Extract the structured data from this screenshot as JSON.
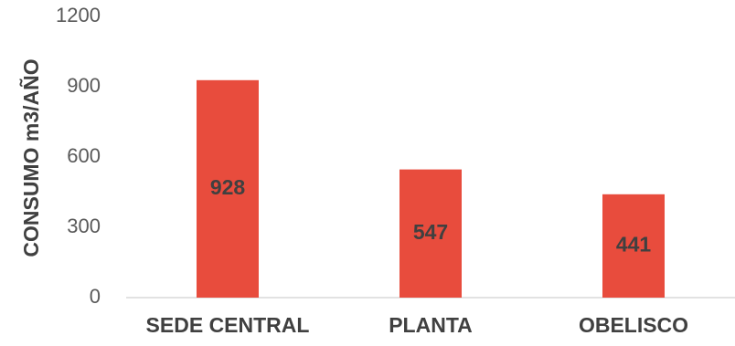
{
  "chart_data": {
    "type": "bar",
    "title": "",
    "xlabel": "",
    "ylabel": "CONSUMO m3/AÑO",
    "categories": [
      "SEDE CENTRAL",
      "PLANTA",
      "OBELISCO"
    ],
    "values": [
      928,
      547,
      441
    ],
    "data_labels": [
      "928",
      "547",
      "441"
    ],
    "ylim": [
      0,
      1200
    ],
    "yticks": [
      "0",
      "300",
      "600",
      "900",
      "1200"
    ],
    "grid": false,
    "legend": "none",
    "colors": {
      "bar": "#E84C3D",
      "axis": "#D9D9D9"
    }
  }
}
